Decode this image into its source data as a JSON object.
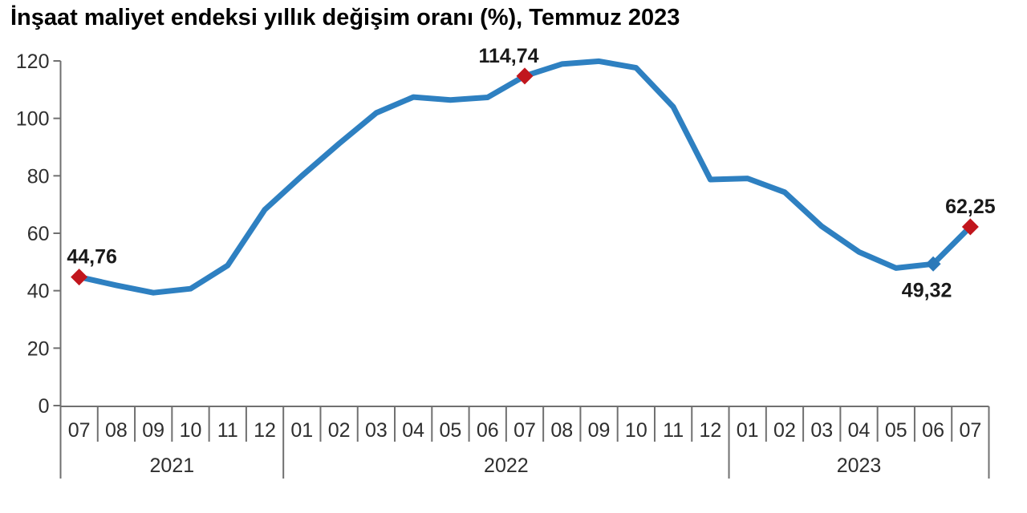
{
  "title": "İnşaat maliyet endeksi yıllık değişim oranı (%), Temmuz 2023",
  "chart_data": {
    "type": "line",
    "title": "İnşaat maliyet endeksi yıllık değişim oranı (%), Temmuz 2023",
    "xlabel": "",
    "ylabel": "",
    "ylim": [
      0,
      120
    ],
    "yticks": [
      0,
      20,
      40,
      60,
      80,
      100,
      120
    ],
    "grid": false,
    "legend": "none",
    "x_months": [
      "07",
      "08",
      "09",
      "10",
      "11",
      "12",
      "01",
      "02",
      "03",
      "04",
      "05",
      "06",
      "07",
      "08",
      "09",
      "10",
      "11",
      "12",
      "01",
      "02",
      "03",
      "04",
      "05",
      "06",
      "07"
    ],
    "year_groups": [
      {
        "label": "2021",
        "months": 6
      },
      {
        "label": "2022",
        "months": 12
      },
      {
        "label": "2023",
        "months": 7
      }
    ],
    "values": [
      44.76,
      41.9,
      39.3,
      40.7,
      48.8,
      68.2,
      80.0,
      91.2,
      101.9,
      107.4,
      106.4,
      107.3,
      114.74,
      118.9,
      119.9,
      117.6,
      104.0,
      78.7,
      79.1,
      74.3,
      62.4,
      53.5,
      47.9,
      49.32,
      62.25
    ],
    "annotations": [
      {
        "index": 0,
        "label": "44,76",
        "marker": "red",
        "placement": "above",
        "dx": 16
      },
      {
        "index": 12,
        "label": "114,74",
        "marker": "red",
        "placement": "above",
        "dx": -20
      },
      {
        "index": 23,
        "label": "49,32",
        "marker": "blue",
        "placement": "below",
        "dx": -8
      },
      {
        "index": 24,
        "label": "62,25",
        "marker": "red",
        "placement": "above",
        "dx": 0
      }
    ],
    "colors": {
      "line": "#2e80c1",
      "marker_red": "#c1161d",
      "marker_blue": "#2b79b9",
      "axis": "#707070",
      "tick_text": "#2f2f2f",
      "label_text": "#1a1a1a"
    }
  }
}
